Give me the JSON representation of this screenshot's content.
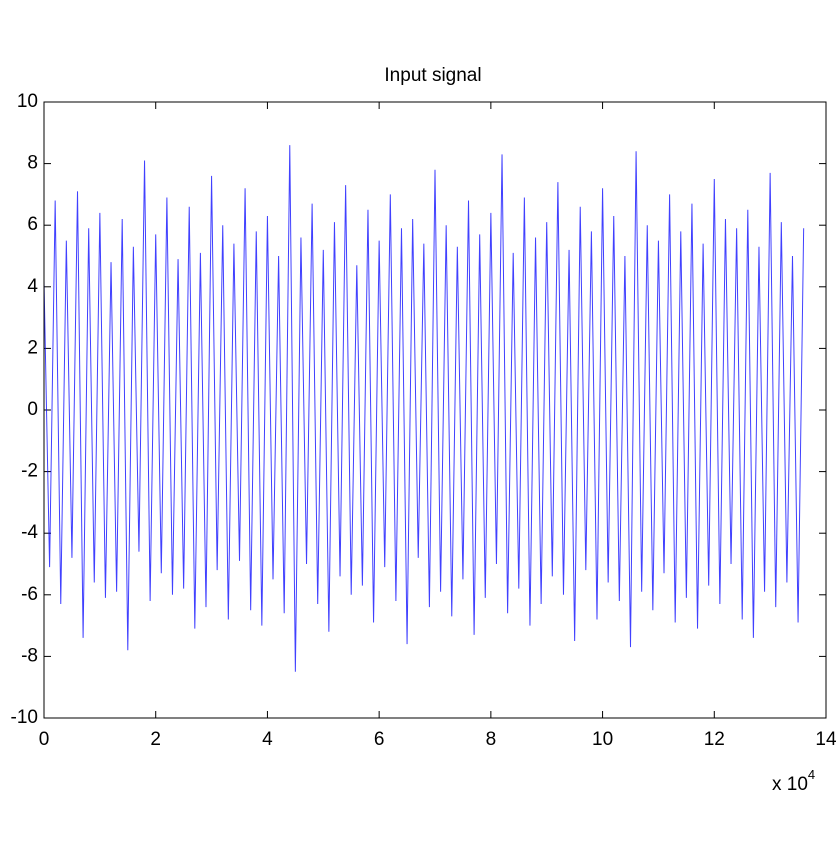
{
  "chart_data": {
    "type": "line",
    "title": "Input signal",
    "x_multiplier": {
      "base": "x 10",
      "exponent": "4"
    },
    "x": [
      0,
      0.1,
      0.2,
      0.3,
      0.4,
      0.5,
      0.6,
      0.7,
      0.8,
      0.9,
      1,
      1.1,
      1.2,
      1.3,
      1.4,
      1.5,
      1.6,
      1.7,
      1.8,
      1.9,
      2,
      2.1,
      2.2,
      2.3,
      2.4,
      2.5,
      2.6,
      2.7,
      2.8,
      2.9,
      3,
      3.1,
      3.2,
      3.3,
      3.4,
      3.5,
      3.6,
      3.7,
      3.8,
      3.9,
      4,
      4.1,
      4.2,
      4.3,
      4.4,
      4.5,
      4.6,
      4.7,
      4.8,
      4.9,
      5,
      5.1,
      5.2,
      5.3,
      5.4,
      5.5,
      5.6,
      5.7,
      5.8,
      5.9,
      6,
      6.1,
      6.2,
      6.3,
      6.4,
      6.5,
      6.6,
      6.7,
      6.8,
      6.9,
      7,
      7.1,
      7.2,
      7.3,
      7.4,
      7.5,
      7.6,
      7.7,
      7.8,
      7.9,
      8,
      8.1,
      8.2,
      8.3,
      8.4,
      8.5,
      8.6,
      8.7,
      8.8,
      8.9,
      9,
      9.1,
      9.2,
      9.3,
      9.4,
      9.5,
      9.6,
      9.7,
      9.8,
      9.9,
      10,
      10.1,
      10.2,
      10.3,
      10.4,
      10.5,
      10.6,
      10.7,
      10.8,
      10.9,
      11,
      11.1,
      11.2,
      11.3,
      11.4,
      11.5,
      11.6,
      11.7,
      11.8,
      11.9,
      12,
      12.1,
      12.2,
      12.3,
      12.4,
      12.5,
      12.6,
      12.7,
      12.8,
      12.9,
      13,
      13.1,
      13.2,
      13.3,
      13.4,
      13.5,
      13.6
    ],
    "series": [
      {
        "color": "#0000ff",
        "values": [
          4.2,
          -5.1,
          6.8,
          -6.3,
          5.5,
          -4.8,
          7.1,
          -7.4,
          5.9,
          -5.6,
          6.4,
          -6.1,
          4.8,
          -5.9,
          6.2,
          -7.8,
          5.3,
          -4.6,
          8.1,
          -6.2,
          5.7,
          -5.3,
          6.9,
          -6.0,
          4.9,
          -5.8,
          6.6,
          -7.1,
          5.1,
          -6.4,
          7.6,
          -5.2,
          6.0,
          -6.8,
          5.4,
          -4.9,
          7.2,
          -6.5,
          5.8,
          -7.0,
          6.3,
          -5.5,
          5.0,
          -6.6,
          8.6,
          -8.5,
          5.6,
          -5.0,
          6.7,
          -6.3,
          5.2,
          -7.2,
          6.1,
          -5.4,
          7.3,
          -6.0,
          4.7,
          -5.7,
          6.5,
          -6.9,
          5.5,
          -5.1,
          7.0,
          -6.2,
          5.9,
          -7.6,
          6.2,
          -4.8,
          5.4,
          -6.4,
          7.8,
          -5.9,
          6.0,
          -6.7,
          5.3,
          -5.5,
          6.8,
          -7.3,
          5.7,
          -6.1,
          6.4,
          -5.0,
          8.3,
          -6.6,
          5.1,
          -5.8,
          6.9,
          -7.0,
          5.6,
          -6.3,
          6.1,
          -5.4,
          7.4,
          -6.0,
          5.2,
          -7.5,
          6.6,
          -5.2,
          5.8,
          -6.8,
          7.2,
          -5.6,
          6.3,
          -6.2,
          5.0,
          -7.7,
          8.4,
          -5.9,
          6.0,
          -6.5,
          5.5,
          -5.3,
          7.0,
          -6.9,
          5.8,
          -6.1,
          6.7,
          -7.1,
          5.4,
          -5.7,
          7.5,
          -6.3,
          6.2,
          -5.0,
          5.9,
          -6.8,
          6.5,
          -7.4,
          5.3,
          -5.9,
          7.7,
          -6.4,
          6.1,
          -5.6,
          5.0,
          -6.9,
          5.9
        ]
      }
    ],
    "xlim": [
      0,
      14
    ],
    "xticks": [
      0,
      2,
      4,
      6,
      8,
      10,
      12,
      14
    ],
    "ylim": [
      -10,
      10
    ],
    "yticks": [
      -10,
      -8,
      -6,
      -4,
      -2,
      0,
      2,
      4,
      6,
      8,
      10
    ]
  }
}
